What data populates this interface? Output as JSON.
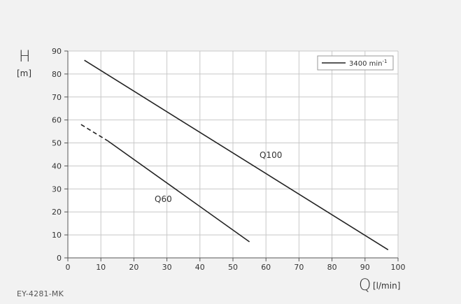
{
  "chart_data": {
    "type": "line",
    "ylabel": "H",
    "yunit": "[m]",
    "xlabel": "Q",
    "xunit": "[l/min]",
    "xlim": [
      0,
      100
    ],
    "ylim": [
      0,
      90
    ],
    "xticks": [
      0,
      10,
      20,
      30,
      40,
      50,
      60,
      70,
      80,
      90,
      100
    ],
    "yticks": [
      0,
      10,
      20,
      30,
      40,
      50,
      60,
      70,
      80,
      90
    ],
    "grid": true,
    "legend": {
      "placement": "top-right",
      "label": "3400 min",
      "superscript": "-1"
    },
    "series": [
      {
        "name": "Q100",
        "x": [
          5,
          97
        ],
        "y": [
          86,
          3.5
        ],
        "style": "solid"
      },
      {
        "name": "Q60",
        "x": [
          4,
          12,
          55
        ],
        "y": [
          58,
          51,
          7
        ],
        "style": "dashed-then-solid"
      }
    ]
  },
  "footer": {
    "code": "EY-4281-MK"
  }
}
